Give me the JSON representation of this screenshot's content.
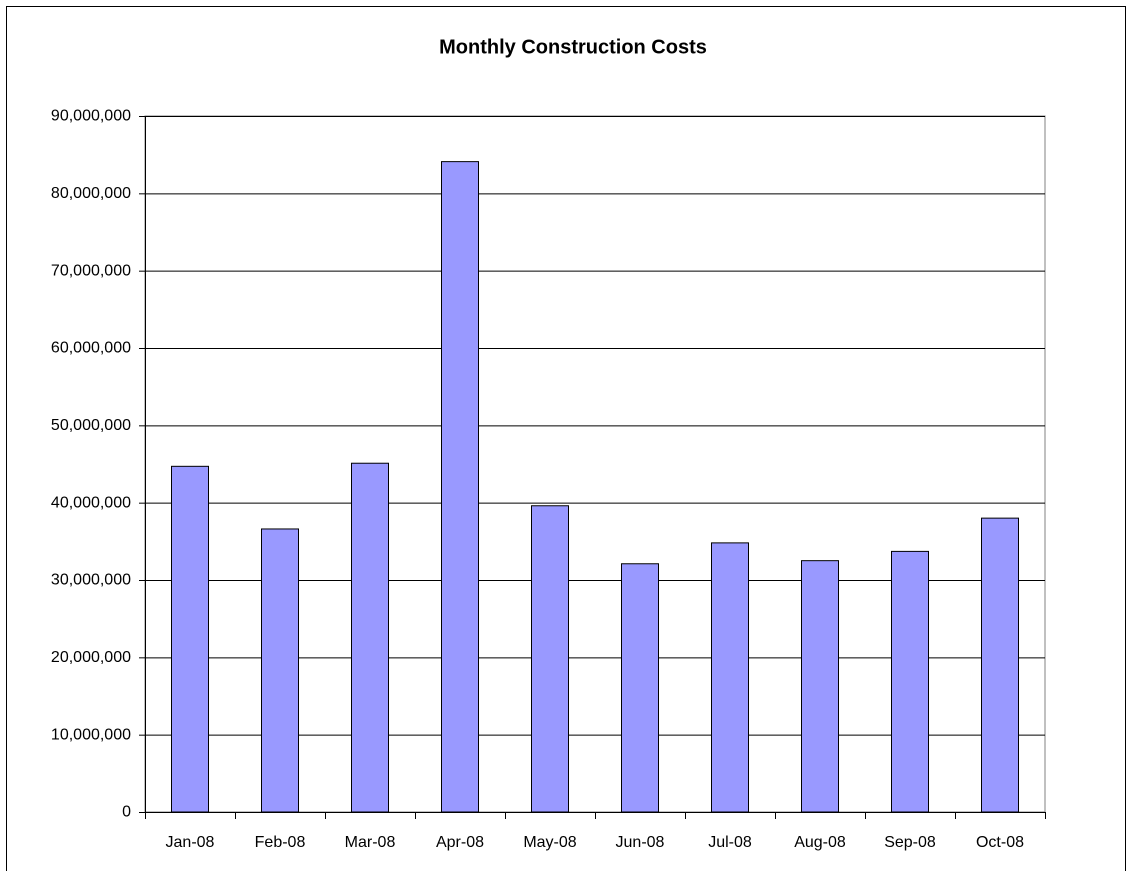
{
  "chart_data": {
    "type": "bar",
    "title": "Monthly Construction Costs",
    "categories": [
      "Jan-08",
      "Feb-08",
      "Mar-08",
      "Apr-08",
      "May-08",
      "Jun-08",
      "Jul-08",
      "Aug-08",
      "Sep-08",
      "Oct-08"
    ],
    "values": [
      44700000,
      36600000,
      45100000,
      84100000,
      39600000,
      32100000,
      34800000,
      32500000,
      33700000,
      38000000
    ],
    "color": "#9999ff",
    "ylim": [
      0,
      90000000
    ],
    "yticks": [
      0,
      {
        "value": 10000000,
        "label": "10,000,000"
      },
      {
        "value": 20000000,
        "label": "20,000,000"
      },
      {
        "value": 30000000,
        "label": "30,000,000"
      },
      {
        "value": 40000000,
        "label": "40,000,000"
      },
      {
        "value": 50000000,
        "label": "50,000,000"
      },
      {
        "value": 60000000,
        "label": "60,000,000"
      },
      {
        "value": 70000000,
        "label": "70,000,000"
      },
      {
        "value": 80000000,
        "label": "80,000,000"
      },
      {
        "value": 90000000,
        "label": "90,000,000"
      }
    ],
    "grid": true
  }
}
